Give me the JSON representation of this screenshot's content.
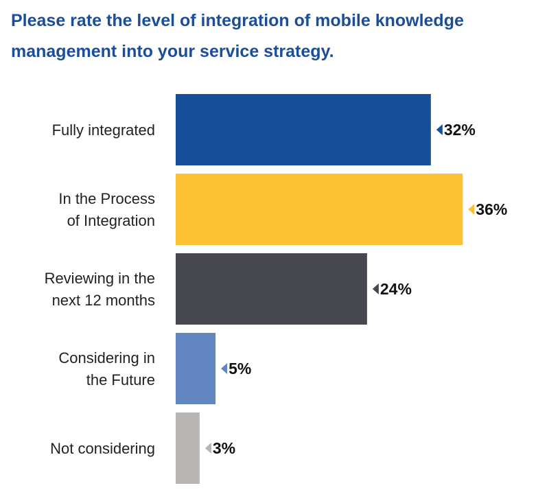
{
  "title": "Please rate the level of integration of mobile knowledge management into your service strategy.",
  "chart_data": {
    "type": "bar",
    "orientation": "horizontal",
    "title": "Please rate the level of integration of mobile knowledge management into your service strategy.",
    "categories": [
      [
        "Fully integrated"
      ],
      [
        "In the Process",
        "of Integration"
      ],
      [
        "Reviewing in the",
        "next 12 months"
      ],
      [
        "Considering in",
        "the Future"
      ],
      [
        "Not considering"
      ]
    ],
    "values": [
      32,
      36,
      24,
      5,
      3
    ],
    "value_labels": [
      "32%",
      "36%",
      "24%",
      "5%",
      "3%"
    ],
    "unit": "%",
    "colors": [
      "#164e9a",
      "#fdc034",
      "#46474f",
      "#6286bf",
      "#b8b6b4"
    ],
    "xlim": [
      0,
      100
    ],
    "grid": false,
    "legend": "none"
  }
}
